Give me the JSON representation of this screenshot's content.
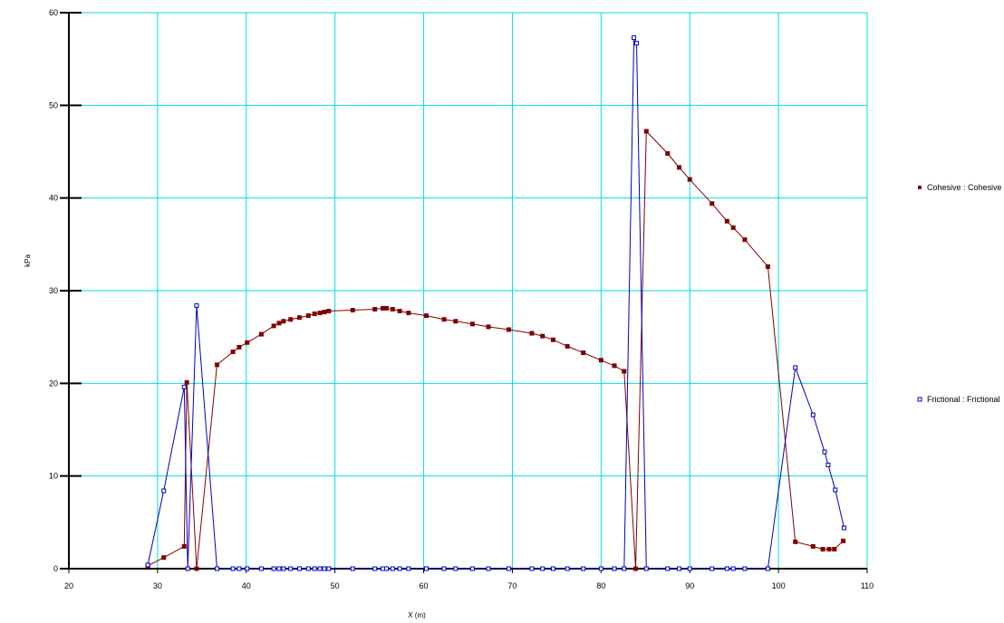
{
  "chart_data": {
    "type": "line",
    "title": "",
    "xlabel": "X (m)",
    "ylabel": "kPa",
    "xlim": [
      20,
      110
    ],
    "ylim": [
      0,
      60
    ],
    "xticks": [
      "20",
      "30",
      "40",
      "50",
      "60",
      "70",
      "80",
      "90",
      "100",
      "110"
    ],
    "yticks": [
      "0",
      "10",
      "20",
      "30",
      "40",
      "50",
      "60"
    ],
    "grid": true,
    "grid_color": "#00e0e0",
    "legend_position": "right",
    "series": [
      {
        "name": "Cohesive : Cohesive",
        "color": "#800000",
        "marker": "filled-square",
        "x": [
          28.9,
          30.7,
          33.0,
          33.3,
          34.4,
          36.7,
          38.5,
          39.2,
          40.1,
          41.7,
          43.1,
          43.7,
          44.2,
          45.0,
          46.0,
          47.0,
          47.7,
          48.3,
          48.8,
          49.3,
          52.0,
          54.5,
          55.4,
          55.8,
          56.5,
          57.3,
          58.3,
          60.3,
          62.3,
          63.6,
          65.5,
          67.3,
          69.6,
          72.2,
          73.4,
          74.6,
          76.2,
          78.0,
          80.0,
          81.5,
          82.6,
          83.9,
          85.1,
          87.5,
          88.8,
          90.0,
          92.5,
          94.2,
          94.9,
          96.2,
          98.8,
          101.9,
          103.9,
          105.0,
          105.7,
          106.3,
          107.3
        ],
        "values": [
          0.3,
          1.2,
          2.4,
          20.1,
          0.0,
          22.0,
          23.4,
          23.9,
          24.4,
          25.3,
          26.2,
          26.5,
          26.7,
          26.9,
          27.1,
          27.3,
          27.5,
          27.6,
          27.7,
          27.8,
          27.9,
          28.0,
          28.1,
          28.1,
          28.0,
          27.8,
          27.6,
          27.3,
          26.9,
          26.7,
          26.4,
          26.1,
          25.8,
          25.4,
          25.1,
          24.7,
          24.0,
          23.3,
          22.5,
          21.9,
          21.3,
          0.0,
          47.2,
          44.8,
          43.3,
          42.0,
          39.4,
          37.5,
          36.8,
          35.5,
          32.6,
          2.9,
          2.4,
          2.1,
          2.1,
          2.1,
          3.0
        ]
      },
      {
        "name": "Frictional : Frictional",
        "color": "#0000c0",
        "marker": "open-square",
        "x": [
          28.9,
          30.7,
          33.0,
          33.4,
          34.4,
          36.7,
          38.5,
          39.2,
          40.1,
          41.7,
          43.1,
          43.7,
          44.2,
          45.0,
          46.0,
          47.0,
          47.7,
          48.3,
          48.8,
          49.3,
          52.0,
          54.5,
          55.4,
          55.8,
          56.5,
          57.3,
          58.3,
          60.3,
          62.3,
          63.6,
          65.5,
          67.3,
          69.6,
          72.2,
          73.4,
          74.6,
          76.2,
          78.0,
          80.0,
          81.5,
          82.6,
          83.7,
          84.0,
          85.1,
          87.5,
          88.8,
          90.0,
          92.5,
          94.2,
          94.9,
          96.2,
          98.8,
          101.9,
          103.9,
          105.2,
          105.6,
          106.4,
          107.4
        ],
        "values": [
          0.4,
          8.4,
          19.6,
          0.0,
          28.4,
          0.0,
          0.0,
          0.0,
          0.0,
          0.0,
          0.0,
          0.0,
          0.0,
          0.0,
          0.0,
          0.0,
          0.0,
          0.0,
          0.0,
          0.0,
          0.0,
          0.0,
          0.0,
          0.0,
          0.0,
          0.0,
          0.0,
          0.0,
          0.0,
          0.0,
          0.0,
          0.0,
          0.0,
          0.0,
          0.0,
          0.0,
          0.0,
          0.0,
          0.0,
          0.0,
          0.0,
          57.3,
          56.7,
          0.0,
          0.0,
          0.0,
          0.0,
          0.0,
          0.0,
          0.0,
          0.0,
          0.0,
          21.7,
          16.6,
          12.6,
          11.2,
          8.5,
          4.4
        ]
      }
    ]
  }
}
